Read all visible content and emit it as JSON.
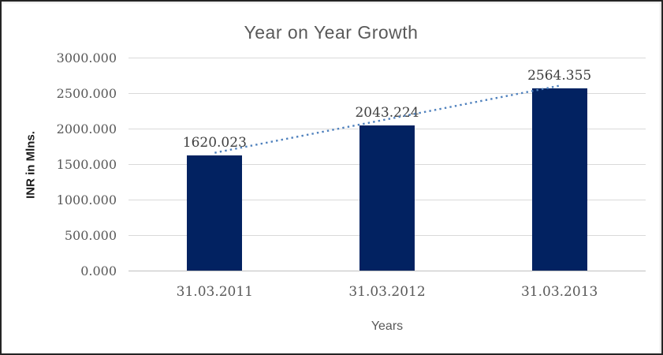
{
  "chart_data": {
    "type": "bar",
    "title": "Year on Year Growth",
    "xlabel": "Years",
    "ylabel": "INR in Mlns.",
    "categories": [
      "31.03.2011",
      "31.03.2012",
      "31.03.2013"
    ],
    "values": [
      1620.023,
      2043.224,
      2564.355
    ],
    "data_labels": [
      "1620.023",
      "2043.224",
      "2564.355"
    ],
    "ylim": [
      0,
      3000
    ],
    "ytick_interval": 500,
    "yticks": [
      {
        "value": 3000,
        "label": "3000.000"
      },
      {
        "value": 2500,
        "label": "2500.000"
      },
      {
        "value": 2000,
        "label": "2000.000"
      },
      {
        "value": 1500,
        "label": "1500.000"
      },
      {
        "value": 1000,
        "label": "1000.000"
      },
      {
        "value": 500,
        "label": "500.000"
      },
      {
        "value": 0,
        "label": "0.000"
      }
    ],
    "grid": true,
    "legend": false,
    "trendline": {
      "type": "linear",
      "style": "dotted"
    },
    "colors": {
      "bar": "#022261",
      "trendline": "#4F81BD",
      "gridline": "#D9D9D9",
      "axis_line": "#BFBFBF",
      "title_text": "#595959",
      "tick_text": "#595959",
      "data_label_text": "#3F3F3F",
      "axis_title_text": "#595959",
      "ylabel_text": "#1A1A1A"
    }
  }
}
